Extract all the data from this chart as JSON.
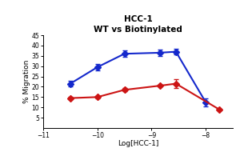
{
  "title_line1": "HCC-1",
  "title_line2": "WT vs Biotinylated",
  "xlabel": "Log[HCC-1]",
  "ylabel": "% Migration",
  "xlim": [
    -11,
    -7.5
  ],
  "ylim": [
    0,
    45
  ],
  "yticks": [
    5,
    10,
    15,
    20,
    25,
    30,
    35,
    40,
    45
  ],
  "xticks": [
    -11,
    -10,
    -9,
    -8
  ],
  "blue_x": [
    -10.5,
    -10.0,
    -9.5,
    -8.85,
    -8.55,
    -8.0
  ],
  "blue_y": [
    21.5,
    29.5,
    36.0,
    36.5,
    37.0,
    12.5
  ],
  "blue_yerr": [
    1.5,
    1.5,
    1.5,
    1.5,
    1.5,
    2.0
  ],
  "red_x": [
    -10.5,
    -10.0,
    -9.5,
    -8.85,
    -8.55,
    -7.75
  ],
  "red_y": [
    14.5,
    15.0,
    18.5,
    20.5,
    21.5,
    9.0
  ],
  "red_yerr": [
    0.5,
    0.5,
    0.8,
    0.5,
    2.0,
    0.5
  ],
  "blue_color": "#1428cc",
  "red_color": "#cc1414",
  "marker_size": 4,
  "line_width": 1.5,
  "cap_size": 2,
  "figwidth": 3.0,
  "figheight": 2.0,
  "dpi": 100
}
